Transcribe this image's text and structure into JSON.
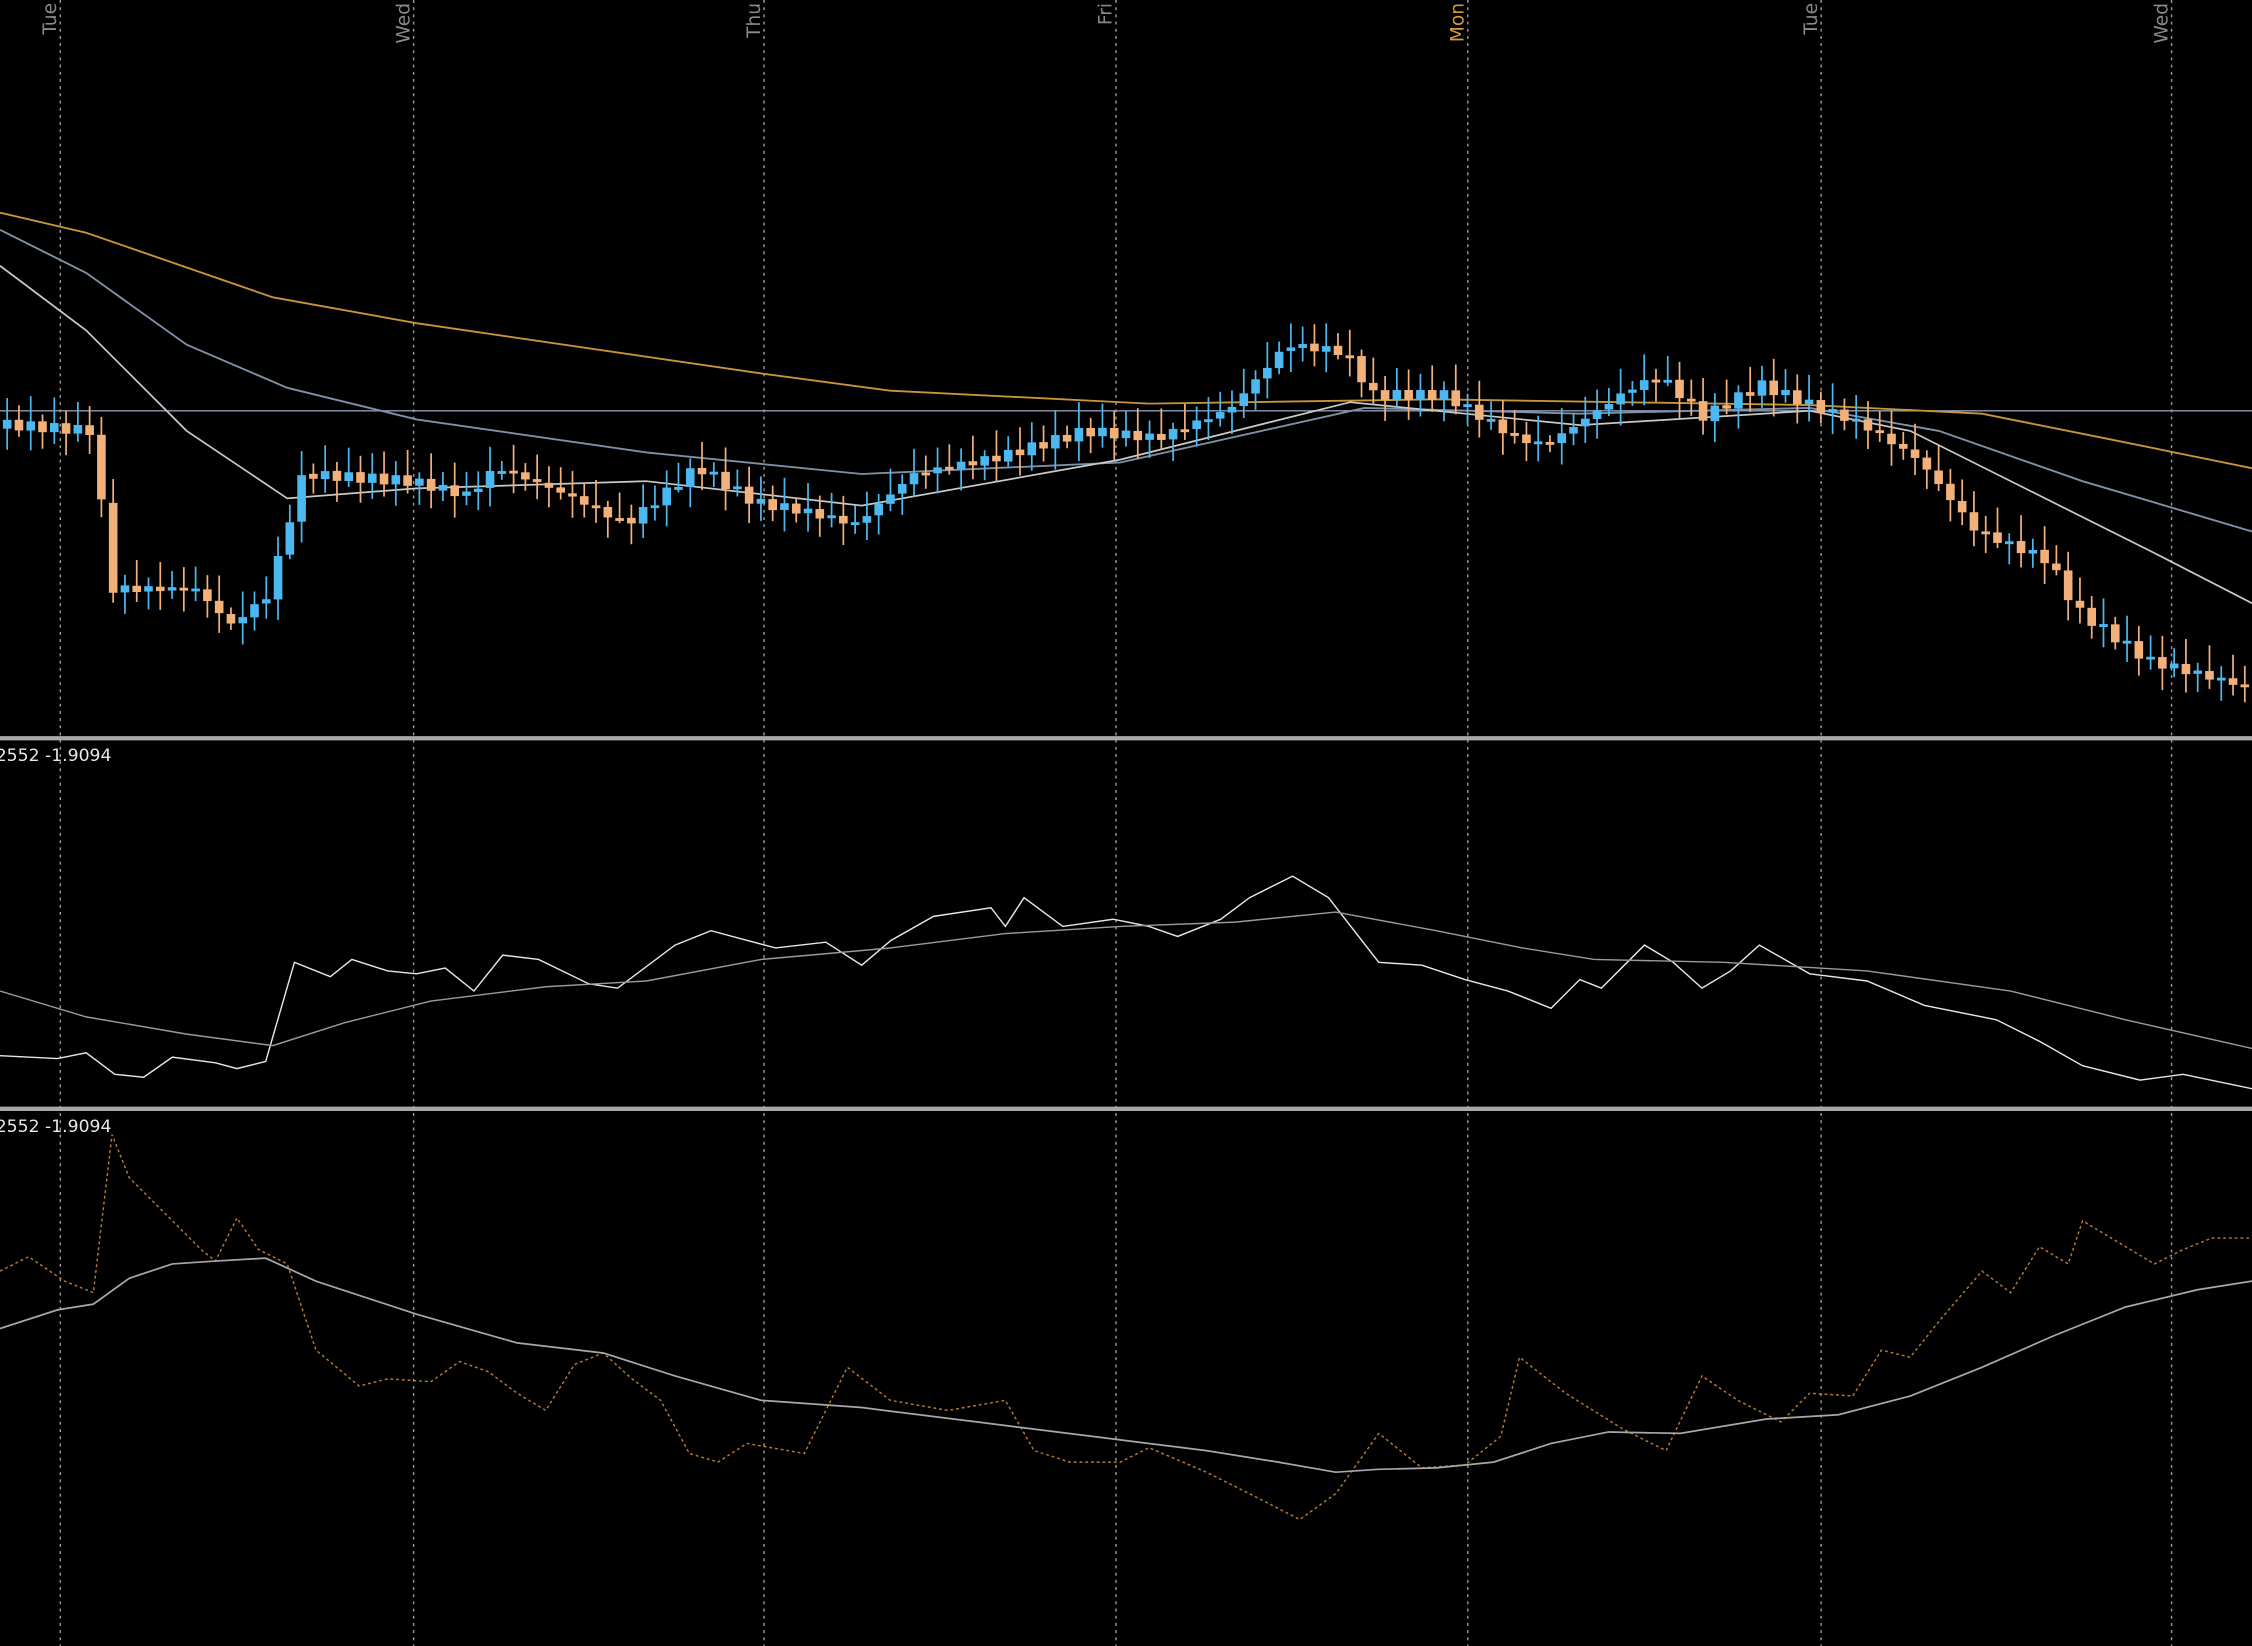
{
  "time_axis": {
    "labels": [
      "Tue",
      "Wed",
      "Thu",
      "Fri",
      "Mon",
      "Tue",
      "Wed"
    ]
  },
  "panels": [
    {
      "label": "2552 -1.9094"
    },
    {
      "label": "2552 -1.9094"
    }
  ]
}
